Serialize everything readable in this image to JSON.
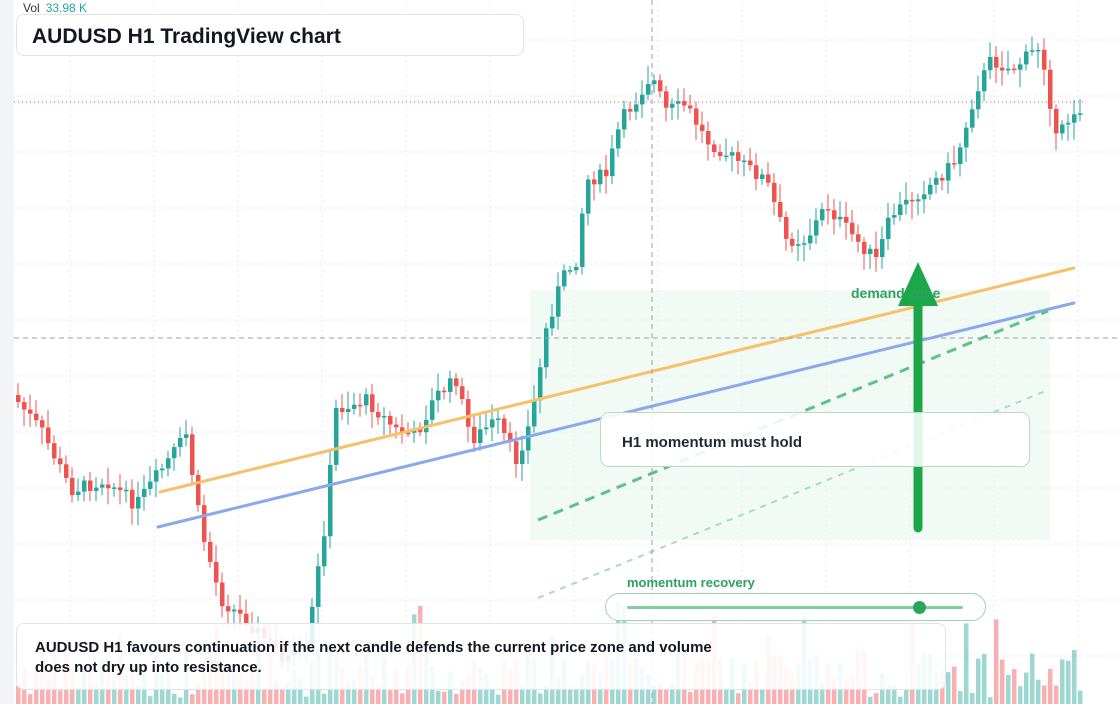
{
  "header": {
    "title": "AUDUSD H1 TradingView chart"
  },
  "volume_readout": {
    "label": "Vol",
    "value": "33.98 K"
  },
  "annotations": {
    "callout": "H1 momentum must hold",
    "zone_label": "demand zone",
    "progress_label": "momentum recovery",
    "summary": "AUDUSD H1 favours continuation if the next candle defends the current price zone and volume does not dry up into resistance."
  },
  "momentum_progress": 0.87,
  "colors": {
    "up": "#26a69a",
    "down": "#ef5350",
    "trend_orange": "#f5c26b",
    "trend_blue": "#8aa8ec",
    "accent_green": "#2aa35d",
    "grid": "#e6e9ef"
  }
}
